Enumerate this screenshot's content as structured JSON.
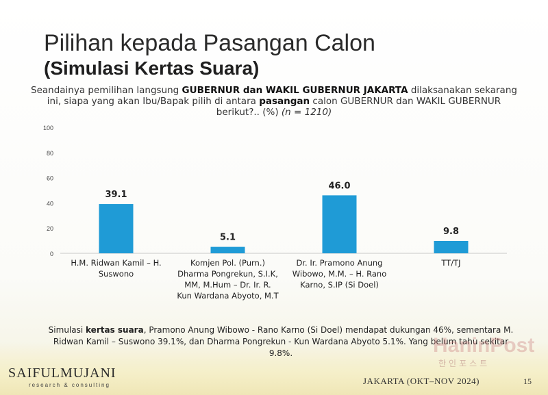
{
  "title": {
    "line1": "Pilihan kepada Pasangan Calon",
    "line2": "(Simulasi Kertas Suara)"
  },
  "question": {
    "part1": "Seandainya pemilihan langsung ",
    "bold1": "GUBERNUR dan WAKIL GUBERNUR JAKARTA",
    "part2": " dilaksanakan sekarang ini, siapa yang akan Ibu/Bapak pilih di antara ",
    "bold2": "pasangan",
    "part3": " calon GUBERNUR dan WAKIL GUBERNUR berikut?.. (%) ",
    "italic": "(n = 1210)"
  },
  "chart_data": {
    "type": "bar",
    "categories": [
      [
        "H.M. Ridwan Kamil – H.",
        "Suswono"
      ],
      [
        "Komjen Pol. (Purn.)",
        "Dharma Pongrekun, S.I.K,",
        "MM, M.Hum – Dr. Ir. R.",
        "Kun Wardana Abyoto, M.T"
      ],
      [
        "Dr. Ir. Pramono Anung",
        "Wibowo, M.M. – H. Rano",
        "Karno, S.IP (Si Doel)"
      ],
      [
        "TT/TJ"
      ]
    ],
    "values": [
      39.1,
      5.1,
      46.0,
      9.8
    ],
    "value_labels": [
      "39.1",
      "5.1",
      "46.0",
      "9.8"
    ],
    "ylim": [
      0,
      100
    ],
    "yticks": [
      "0",
      "20",
      "40",
      "60",
      "80",
      "100"
    ],
    "bar_color": "#1f9bd6",
    "grid": false
  },
  "footnote": {
    "part1": "Simulasi ",
    "bold": "kertas suara",
    "part2": ", Pramono Anung Wibowo - Rano Karno (Si Doel) mendapat dukungan 46%, sementara M. Ridwan Kamil – Suswono 39.1%, dan Dharma Pongrekun - Kun Wardana Abyoto 5.1%. Yang belum tahu sekitar 9.8%."
  },
  "footer": {
    "logo": "SAIFULMUJANI",
    "logo_sub": "research & consulting",
    "place_date": "JAKARTA (OKT–NOV 2024)",
    "page": "15"
  },
  "watermark": {
    "main": "HaninPost",
    "sub": "한인포스트"
  }
}
